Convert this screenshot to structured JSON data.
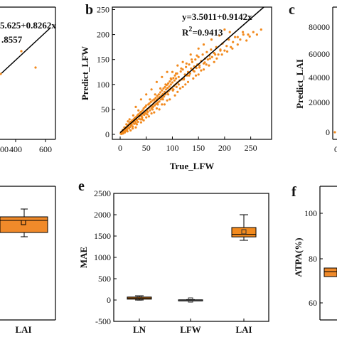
{
  "panels": {
    "a": {
      "equation_line1": "5.625+0.8262x",
      "equation_line2": ".8557",
      "x_ticks": [
        "00",
        "400",
        "600"
      ],
      "points": [
        [
          480,
          205
        ],
        [
          555,
          185
        ]
      ]
    },
    "b": {
      "letter": "b",
      "equation": "y=3.5011+0.9142x",
      "r2_prefix": "R",
      "r2_sup": "2",
      "r2_suffix": "=0.9413",
      "xlabel": "True_LFW",
      "ylabel": "Predict_LFW",
      "x_ticks": [
        "0",
        "50",
        "100",
        "150",
        "200",
        "250"
      ],
      "y_ticks": [
        "0",
        "50",
        "100",
        "150",
        "200",
        "250"
      ],
      "xlim": [
        -15,
        290
      ],
      "ylim": [
        -10,
        255
      ],
      "intercept": 3.5011,
      "slope": 0.9142
    },
    "c": {
      "letter": "c",
      "ylabel": "Predict_LAI",
      "y_ticks": [
        "0",
        "20000",
        "40000",
        "60000",
        "80000"
      ],
      "x_tick_partial": "0"
    },
    "d": {
      "x_tick": "LAI"
    },
    "e": {
      "letter": "e",
      "ylabel": "MAE",
      "categories": [
        "LN",
        "LFW",
        "LAI"
      ],
      "y_ticks": [
        "-500",
        "0",
        "500",
        "1000",
        "1500",
        "2000",
        "2500"
      ]
    },
    "f": {
      "letter": "f",
      "ylabel": "ATPA(%)",
      "y_ticks": [
        "60",
        "80",
        "100"
      ]
    }
  },
  "chart_data": [
    {
      "panel": "a",
      "type": "scatter",
      "title": "",
      "xlabel": "",
      "ylabel": "",
      "x_ticks": [
        400,
        600
      ],
      "points": [
        [
          480,
          205
        ],
        [
          555,
          185
        ]
      ],
      "fit": "5.625+0.8262x",
      "r2_visible_text": ".8557"
    },
    {
      "panel": "b",
      "type": "scatter",
      "title": "",
      "xlabel": "True_LFW",
      "ylabel": "Predict_LFW",
      "xlim": [
        -15,
        290
      ],
      "ylim": [
        -10,
        255
      ],
      "fit": {
        "intercept": 3.5011,
        "slope": 0.9142
      },
      "r2": 0.9413,
      "color": "#f28a1e",
      "points": [
        [
          1,
          2
        ],
        [
          2,
          4
        ],
        [
          3,
          1
        ],
        [
          4,
          6
        ],
        [
          5,
          3
        ],
        [
          6,
          8
        ],
        [
          7,
          5
        ],
        [
          8,
          9
        ],
        [
          9,
          12
        ],
        [
          10,
          7
        ],
        [
          11,
          14
        ],
        [
          12,
          10
        ],
        [
          13,
          9
        ],
        [
          14,
          17
        ],
        [
          15,
          13
        ],
        [
          16,
          19
        ],
        [
          17,
          12
        ],
        [
          18,
          22
        ],
        [
          19,
          15
        ],
        [
          20,
          25
        ],
        [
          21,
          18
        ],
        [
          22,
          20
        ],
        [
          23,
          28
        ],
        [
          24,
          16
        ],
        [
          25,
          24
        ],
        [
          26,
          30
        ],
        [
          27,
          21
        ],
        [
          28,
          33
        ],
        [
          29,
          26
        ],
        [
          30,
          22
        ],
        [
          31,
          35
        ],
        [
          32,
          29
        ],
        [
          33,
          38
        ],
        [
          34,
          25
        ],
        [
          35,
          40
        ],
        [
          36,
          31
        ],
        [
          37,
          36
        ],
        [
          38,
          43
        ],
        [
          39,
          30
        ],
        [
          40,
          45
        ],
        [
          41,
          37
        ],
        [
          42,
          34
        ],
        [
          43,
          48
        ],
        [
          44,
          41
        ],
        [
          45,
          52
        ],
        [
          46,
          39
        ],
        [
          47,
          44
        ],
        [
          48,
          55
        ],
        [
          49,
          42
        ],
        [
          50,
          58
        ],
        [
          51,
          47
        ],
        [
          52,
          50
        ],
        [
          53,
          45
        ],
        [
          54,
          60
        ],
        [
          55,
          53
        ],
        [
          56,
          62
        ],
        [
          57,
          48
        ],
        [
          58,
          56
        ],
        [
          59,
          65
        ],
        [
          60,
          52
        ],
        [
          61,
          58
        ],
        [
          62,
          68
        ],
        [
          63,
          55
        ],
        [
          64,
          62
        ],
        [
          65,
          70
        ],
        [
          66,
          58
        ],
        [
          67,
          66
        ],
        [
          68,
          73
        ],
        [
          69,
          61
        ],
        [
          70,
          69
        ],
        [
          71,
          77
        ],
        [
          72,
          64
        ],
        [
          73,
          72
        ],
        [
          74,
          80
        ],
        [
          75,
          66
        ],
        [
          76,
          75
        ],
        [
          77,
          84
        ],
        [
          78,
          70
        ],
        [
          79,
          78
        ],
        [
          80,
          88
        ],
        [
          81,
          73
        ],
        [
          82,
          81
        ],
        [
          83,
          92
        ],
        [
          84,
          76
        ],
        [
          85,
          85
        ],
        [
          86,
          95
        ],
        [
          87,
          80
        ],
        [
          88,
          90
        ],
        [
          89,
          99
        ],
        [
          90,
          84
        ],
        [
          91,
          93
        ],
        [
          92,
          102
        ],
        [
          93,
          87
        ],
        [
          94,
          96
        ],
        [
          95,
          106
        ],
        [
          96,
          90
        ],
        [
          97,
          100
        ],
        [
          98,
          110
        ],
        [
          99,
          93
        ],
        [
          100,
          104
        ],
        [
          101,
          88
        ],
        [
          102,
          113
        ],
        [
          103,
          97
        ],
        [
          104,
          108
        ],
        [
          105,
          118
        ],
        [
          106,
          100
        ],
        [
          107,
          112
        ],
        [
          108,
          95
        ],
        [
          109,
          122
        ],
        [
          110,
          104
        ],
        [
          112,
          115
        ],
        [
          114,
          108
        ],
        [
          116,
          126
        ],
        [
          118,
          110
        ],
        [
          120,
          130
        ],
        [
          122,
          112
        ],
        [
          124,
          120
        ],
        [
          126,
          135
        ],
        [
          128,
          118
        ],
        [
          130,
          125
        ],
        [
          132,
          140
        ],
        [
          134,
          122
        ],
        [
          136,
          132
        ],
        [
          138,
          145
        ],
        [
          140,
          128
        ],
        [
          142,
          136
        ],
        [
          144,
          150
        ],
        [
          146,
          133
        ],
        [
          148,
          140
        ],
        [
          150,
          155
        ],
        [
          152,
          138
        ],
        [
          155,
          147
        ],
        [
          158,
          160
        ],
        [
          160,
          142
        ],
        [
          163,
          152
        ],
        [
          166,
          165
        ],
        [
          168,
          150
        ],
        [
          171,
          158
        ],
        [
          174,
          170
        ],
        [
          176,
          155
        ],
        [
          180,
          163
        ],
        [
          184,
          175
        ],
        [
          188,
          160
        ],
        [
          192,
          170
        ],
        [
          196,
          182
        ],
        [
          200,
          168
        ],
        [
          204,
          177
        ],
        [
          208,
          190
        ],
        [
          212,
          175
        ],
        [
          216,
          185
        ],
        [
          220,
          195
        ],
        [
          225,
          180
        ],
        [
          230,
          190
        ],
        [
          236,
          200
        ],
        [
          242,
          188
        ],
        [
          248,
          196
        ],
        [
          255,
          205
        ],
        [
          262,
          200
        ],
        [
          270,
          210
        ],
        [
          30,
          55
        ],
        [
          40,
          70
        ],
        [
          50,
          80
        ],
        [
          60,
          90
        ],
        [
          70,
          105
        ],
        [
          80,
          115
        ],
        [
          90,
          125
        ],
        [
          45,
          28
        ],
        [
          55,
          36
        ],
        [
          65,
          44
        ],
        [
          75,
          50
        ],
        [
          85,
          60
        ],
        [
          95,
          70
        ],
        [
          110,
          85
        ],
        [
          120,
          95
        ],
        [
          130,
          105
        ],
        [
          140,
          112
        ],
        [
          150,
          120
        ],
        [
          160,
          130
        ],
        [
          170,
          138
        ],
        [
          180,
          145
        ],
        [
          100,
          125
        ],
        [
          110,
          138
        ],
        [
          120,
          145
        ],
        [
          135,
          160
        ],
        [
          150,
          172
        ],
        [
          160,
          180
        ],
        [
          175,
          190
        ],
        [
          190,
          198
        ],
        [
          200,
          210
        ],
        [
          210,
          205
        ],
        [
          35,
          48
        ],
        [
          25,
          38
        ],
        [
          15,
          26
        ],
        [
          20,
          8
        ],
        [
          30,
          14
        ],
        [
          40,
          24
        ],
        [
          50,
          34
        ],
        [
          60,
          42
        ],
        [
          70,
          52
        ],
        [
          80,
          60
        ],
        [
          90,
          68
        ],
        [
          105,
          78
        ],
        [
          115,
          92
        ],
        [
          125,
          100
        ],
        [
          145,
          118
        ],
        [
          155,
          128
        ],
        [
          165,
          140
        ],
        [
          185,
          152
        ],
        [
          195,
          160
        ],
        [
          205,
          166
        ],
        [
          215,
          172
        ],
        [
          225,
          195
        ],
        [
          235,
          205
        ],
        [
          245,
          200
        ],
        [
          18,
          30
        ],
        [
          12,
          20
        ],
        [
          8,
          14
        ],
        [
          5,
          9
        ],
        [
          3,
          5
        ],
        [
          2,
          1
        ],
        [
          6,
          2
        ],
        [
          9,
          4
        ],
        [
          14,
          6
        ],
        [
          24,
          12
        ],
        [
          32,
          20
        ],
        [
          42,
          30
        ],
        [
          52,
          40
        ],
        [
          62,
          50
        ],
        [
          72,
          60
        ],
        [
          82,
          70
        ],
        [
          92,
          80
        ],
        [
          102,
          90
        ],
        [
          112,
          100
        ],
        [
          122,
          110
        ],
        [
          132,
          118
        ],
        [
          142,
          126
        ],
        [
          152,
          134
        ],
        [
          162,
          144
        ],
        [
          172,
          152
        ],
        [
          182,
          160
        ],
        [
          192,
          168
        ],
        [
          57,
          70
        ],
        [
          67,
          80
        ],
        [
          77,
          92
        ],
        [
          87,
          100
        ],
        [
          97,
          112
        ],
        [
          107,
          122
        ],
        [
          117,
          132
        ],
        [
          127,
          142
        ],
        [
          137,
          150
        ],
        [
          147,
          158
        ]
      ]
    },
    {
      "panel": "c",
      "type": "scatter",
      "title": "",
      "xlabel": "",
      "ylabel": "Predict_LAI",
      "ylim": [
        0,
        80000
      ],
      "y_ticks": [
        0,
        20000,
        40000,
        60000,
        80000
      ]
    },
    {
      "panel": "d",
      "type": "box",
      "categories": [
        "LAI"
      ],
      "boxes": [
        {
          "q1": 1750,
          "median": 1900,
          "q3": 2000,
          "whisker_low": 1650,
          "whisker_high": 2200,
          "mean": 1850
        }
      ]
    },
    {
      "panel": "e",
      "type": "box",
      "title": "",
      "xlabel": "",
      "ylabel": "MAE",
      "ylim": [
        -500,
        2500
      ],
      "categories": [
        "LN",
        "LFW",
        "LAI"
      ],
      "boxes": [
        {
          "q1": 20,
          "median": 45,
          "q3": 70,
          "whisker_low": 0,
          "whisker_high": 100,
          "mean": 45
        },
        {
          "q1": -5,
          "median": 0,
          "q3": 5,
          "whisker_low": -10,
          "whisker_high": 10,
          "mean": 0
        },
        {
          "q1": 1480,
          "median": 1540,
          "q3": 1700,
          "whisker_low": 1400,
          "whisker_high": 2000,
          "mean": 1600
        }
      ],
      "box_color": "#f28a1e"
    },
    {
      "panel": "f",
      "type": "box",
      "title": "",
      "xlabel": "",
      "ylabel": "ATPA(%)",
      "ylim": [
        55,
        110
      ],
      "y_ticks": [
        60,
        80,
        100
      ],
      "boxes": [
        {
          "q1": 71,
          "median": 73,
          "q3": 75,
          "whisker_low": 70,
          "whisker_high": 76,
          "mean": 73
        }
      ]
    }
  ],
  "colors": {
    "points": "#f28a1e",
    "box_fill": "#f08a2a",
    "line": "#000000",
    "axis": "#000000"
  }
}
